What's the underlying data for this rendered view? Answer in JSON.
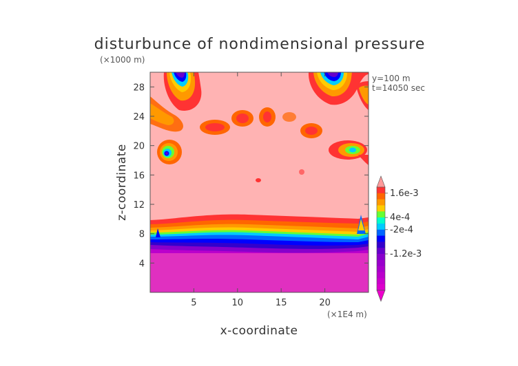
{
  "chart_data": {
    "type": "heatmap",
    "title": "disturbunce of nondimensional pressure",
    "z_unit": "(×1000 m)",
    "x_unit": "(×1E4 m)",
    "xlabel": "x-coordinate",
    "ylabel": "z-coordinate",
    "info_lines": [
      "y=100 m",
      "t=14050 sec"
    ],
    "xlim": [
      0,
      25
    ],
    "ylim": [
      0,
      30
    ],
    "x_ticks": [
      {
        "value": 5,
        "label": "5"
      },
      {
        "value": 10,
        "label": "10"
      },
      {
        "value": 15,
        "label": "15"
      },
      {
        "value": 20,
        "label": "20"
      }
    ],
    "y_ticks": [
      {
        "value": 4,
        "label": "4"
      },
      {
        "value": 8,
        "label": "8"
      },
      {
        "value": 12,
        "label": "12"
      },
      {
        "value": 16,
        "label": "16"
      },
      {
        "value": 20,
        "label": "20"
      },
      {
        "value": 24,
        "label": "24"
      },
      {
        "value": 28,
        "label": "28"
      }
    ],
    "colorbar": {
      "colors": [
        "#ff9a9a",
        "#ff3333",
        "#ff6600",
        "#ff9900",
        "#ffcc00",
        "#66ff33",
        "#00ffcc",
        "#00ccff",
        "#0066ff",
        "#0000ff",
        "#3300cc",
        "#6600cc",
        "#8800cc",
        "#9900cc",
        "#aa00cc",
        "#bb00cc",
        "#cc00cc",
        "#dd00cc",
        "#ee00cc"
      ],
      "labels": [
        {
          "index": 1,
          "label": "1.6e-3"
        },
        {
          "index": 5,
          "label": "4e-4"
        },
        {
          "index": 7,
          "label": "-2e-4"
        },
        {
          "index": 11,
          "label": "-1.2e-3"
        }
      ]
    },
    "regions": {
      "background_color": "#ffb3b3",
      "low_layer_color": "#e030c0",
      "low_layer_top_z": 6.5
    }
  }
}
